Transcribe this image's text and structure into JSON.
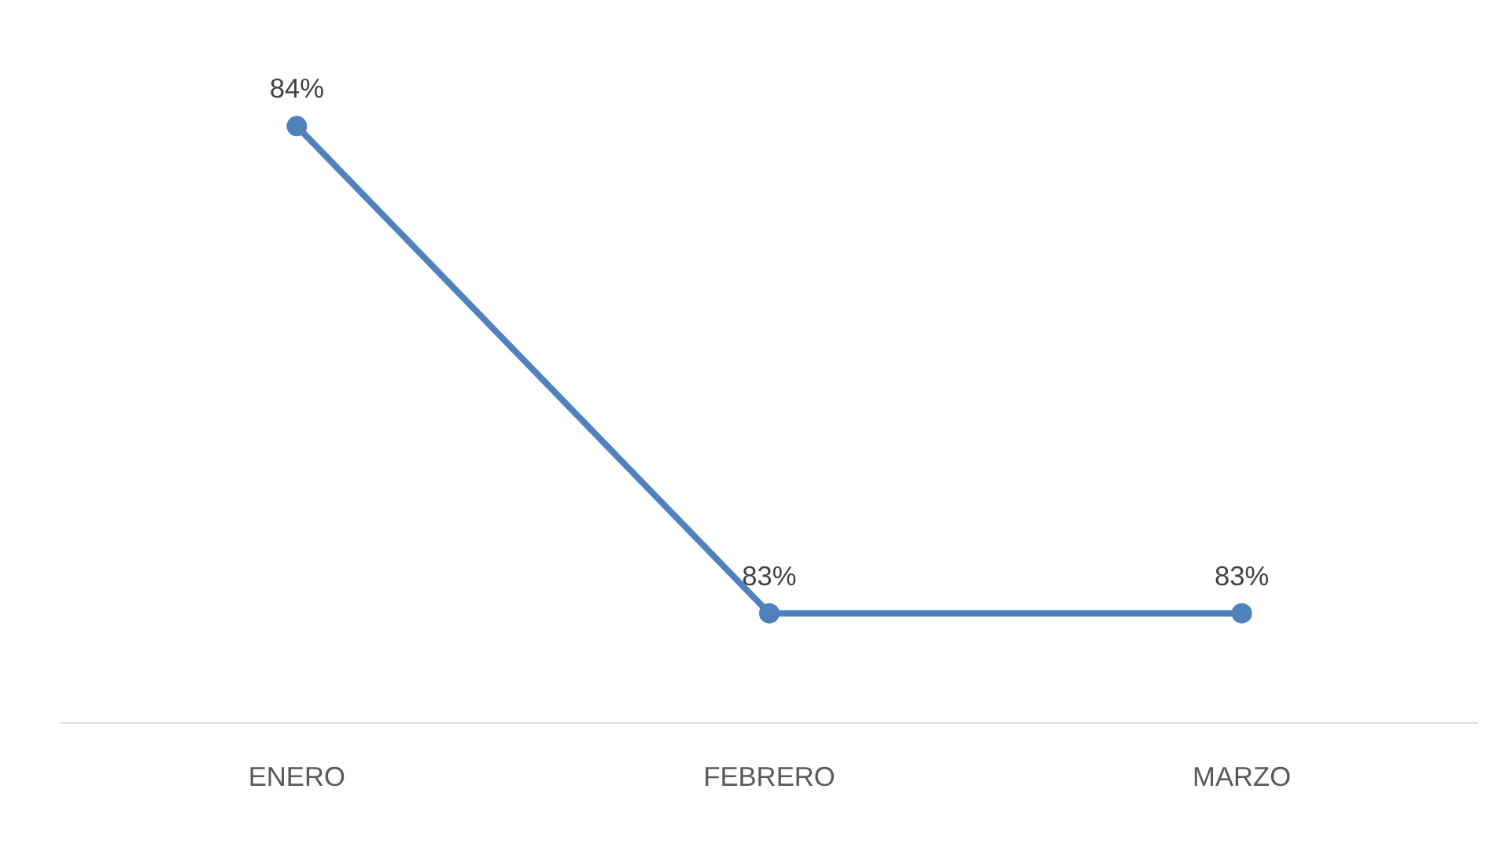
{
  "chart_data": {
    "type": "line",
    "categories": [
      "ENERO",
      "FEBRERO",
      "MARZO"
    ],
    "series": [
      {
        "color": "#4f81bd",
        "values": [
          84,
          83,
          83
        ],
        "value_labels": [
          "84%",
          "83%",
          "83%"
        ]
      }
    ],
    "tick_labels": "x",
    "marker": "circle",
    "line_style": "solid"
  }
}
